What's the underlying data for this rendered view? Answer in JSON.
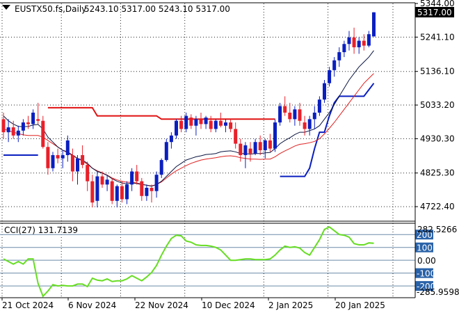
{
  "header": {
    "symbol": "EUSTX50.fs,Daily",
    "ohlc": "5243.10 5317.00 5243.10 5317.00"
  },
  "price_panel": {
    "current_price_tag": "5317.00",
    "top_label": "5344.00",
    "price_labels": [
      "5241.10",
      "5136.10",
      "5033.20",
      "4930.30",
      "4825.30",
      "4722.40"
    ]
  },
  "indicator_panel": {
    "title": "CCI(27) 131.7139",
    "max_label": "282.5266",
    "min_label": "-285.9598",
    "levels": [
      {
        "label": "200",
        "value": 200,
        "tagged": true
      },
      {
        "label": "100",
        "value": 100,
        "tagged": true
      },
      {
        "label": "0.00",
        "value": 0,
        "tagged": false
      },
      {
        "label": "-100",
        "value": -100,
        "tagged": true
      },
      {
        "label": "-200",
        "value": -200,
        "tagged": true
      }
    ]
  },
  "x_axis": {
    "labels": [
      "21 Oct 2024",
      "6 Nov 2024",
      "22 Nov 2024",
      "10 Dec 2024",
      "2 Jan 2025",
      "20 Jan 2025"
    ]
  },
  "colors": {
    "bull": "#0a1fbf",
    "bear": "#e8202a",
    "ema_fast": "#0a1440",
    "ema_slow": "#e02020",
    "support": "#0a1fbf",
    "resistance": "#e01010",
    "cci": "#66dd22",
    "level_line": "#6a8aa8",
    "tag_bg": "#2a62a8",
    "price_tag_bg": "#000000"
  },
  "chart_data": {
    "type": "candlestick",
    "y_range_price": [
      4680,
      5344
    ],
    "y_range_cci": [
      -285.9598,
      282.5266
    ],
    "candles": [
      [
        4990,
        5010,
        4930,
        4950
      ],
      [
        4950,
        4990,
        4920,
        4965
      ],
      [
        4965,
        4985,
        4930,
        4940
      ],
      [
        4940,
        4970,
        4920,
        4955
      ],
      [
        4955,
        4990,
        4940,
        4980
      ],
      [
        4980,
        5000,
        4960,
        4975
      ],
      [
        4975,
        5020,
        4960,
        5010
      ],
      [
        4990,
        5040,
        4975,
        4985
      ],
      [
        4985,
        5000,
        4900,
        4905
      ],
      [
        4905,
        4920,
        4820,
        4840
      ],
      [
        4840,
        4890,
        4830,
        4880
      ],
      [
        4880,
        4900,
        4855,
        4870
      ],
      [
        4870,
        4895,
        4840,
        4880
      ],
      [
        4880,
        4940,
        4860,
        4925
      ],
      [
        4880,
        4900,
        4800,
        4830
      ],
      [
        4830,
        4880,
        4790,
        4870
      ],
      [
        4880,
        4910,
        4840,
        4850
      ],
      [
        4850,
        4860,
        4770,
        4800
      ],
      [
        4800,
        4820,
        4720,
        4735
      ],
      [
        4740,
        4830,
        4720,
        4815
      ],
      [
        4815,
        4830,
        4780,
        4790
      ],
      [
        4790,
        4820,
        4770,
        4805
      ],
      [
        4800,
        4810,
        4730,
        4740
      ],
      [
        4740,
        4790,
        4720,
        4785
      ],
      [
        4785,
        4800,
        4735,
        4745
      ],
      [
        4745,
        4800,
        4730,
        4790
      ],
      [
        4790,
        4840,
        4770,
        4830
      ],
      [
        4830,
        4850,
        4790,
        4800
      ],
      [
        4800,
        4810,
        4740,
        4755
      ],
      [
        4755,
        4790,
        4740,
        4780
      ],
      [
        4780,
        4790,
        4735,
        4770
      ],
      [
        4770,
        4830,
        4750,
        4820
      ],
      [
        4820,
        4870,
        4810,
        4865
      ],
      [
        4865,
        4930,
        4860,
        4920
      ],
      [
        4920,
        4950,
        4900,
        4940
      ],
      [
        4940,
        4990,
        4930,
        4985
      ],
      [
        4985,
        5000,
        4950,
        4960
      ],
      [
        4960,
        5010,
        4950,
        5000
      ],
      [
        4995,
        5005,
        4960,
        4970
      ],
      [
        4970,
        5000,
        4940,
        4990
      ],
      [
        4990,
        5010,
        4960,
        4975
      ],
      [
        4975,
        5000,
        4960,
        4995
      ],
      [
        4985,
        5000,
        4950,
        4960
      ],
      [
        4960,
        4990,
        4950,
        4985
      ],
      [
        4985,
        5010,
        4965,
        4970
      ],
      [
        4970,
        4990,
        4950,
        4980
      ],
      [
        4980,
        4990,
        4950,
        4960
      ],
      [
        4960,
        4980,
        4900,
        4915
      ],
      [
        4915,
        4930,
        4860,
        4880
      ],
      [
        4880,
        4920,
        4840,
        4910
      ],
      [
        4900,
        4920,
        4860,
        4885
      ],
      [
        4885,
        4930,
        4880,
        4920
      ],
      [
        4920,
        4940,
        4880,
        4895
      ],
      [
        4895,
        4930,
        4870,
        4925
      ],
      [
        4925,
        4945,
        4890,
        4900
      ],
      [
        4900,
        4990,
        4890,
        4980
      ],
      [
        4980,
        5040,
        4970,
        5030
      ],
      [
        5030,
        5060,
        5000,
        5010
      ],
      [
        5010,
        5040,
        4980,
        4990
      ],
      [
        4990,
        5030,
        4970,
        5020
      ],
      [
        5020,
        5040,
        4970,
        4985
      ],
      [
        4980,
        5000,
        4940,
        4960
      ],
      [
        4960,
        5000,
        4940,
        4990
      ],
      [
        4990,
        5030,
        4960,
        5010
      ],
      [
        5010,
        5060,
        5000,
        5050
      ],
      [
        5050,
        5110,
        5040,
        5100
      ],
      [
        5100,
        5150,
        5090,
        5140
      ],
      [
        5140,
        5180,
        5120,
        5170
      ],
      [
        5170,
        5210,
        5150,
        5195
      ],
      [
        5195,
        5230,
        5180,
        5220
      ],
      [
        5220,
        5260,
        5200,
        5240
      ],
      [
        5240,
        5270,
        5190,
        5210
      ],
      [
        5210,
        5240,
        5190,
        5230
      ],
      [
        5230,
        5250,
        5200,
        5215
      ],
      [
        5215,
        5260,
        5210,
        5250
      ],
      [
        5243.1,
        5317,
        5243.1,
        5317
      ]
    ],
    "ema_fast": [
      5000,
      4985,
      4975,
      4968,
      4967,
      4968,
      4972,
      4974,
      4960,
      4935,
      4920,
      4905,
      4895,
      4890,
      4880,
      4870,
      4865,
      4855,
      4840,
      4830,
      4825,
      4818,
      4808,
      4800,
      4795,
      4792,
      4795,
      4793,
      4790,
      4788,
      4785,
      4790,
      4800,
      4815,
      4830,
      4845,
      4855,
      4865,
      4870,
      4875,
      4878,
      4882,
      4883,
      4885,
      4890,
      4892,
      4893,
      4890,
      4885,
      4885,
      4883,
      4885,
      4885,
      4887,
      4888,
      4900,
      4915,
      4925,
      4933,
      4943,
      4950,
      4950,
      4955,
      4960,
      4970,
      4990,
      5010,
      5035,
      5060,
      5085,
      5110,
      5130,
      5150,
      5165,
      5180,
      5200
    ],
    "ema_slow": [
      4960,
      4955,
      4950,
      4946,
      4942,
      4940,
      4940,
      4940,
      4935,
      4925,
      4915,
      4905,
      4895,
      4887,
      4878,
      4870,
      4862,
      4852,
      4840,
      4832,
      4826,
      4819,
      4810,
      4804,
      4800,
      4797,
      4797,
      4795,
      4791,
      4788,
      4786,
      4790,
      4798,
      4810,
      4822,
      4832,
      4840,
      4848,
      4855,
      4860,
      4865,
      4868,
      4870,
      4872,
      4875,
      4877,
      4878,
      4876,
      4872,
      4870,
      4868,
      4868,
      4867,
      4868,
      4868,
      4875,
      4885,
      4893,
      4900,
      4908,
      4913,
      4915,
      4918,
      4922,
      4930,
      4945,
      4962,
      4980,
      5000,
      5020,
      5040,
      5060,
      5080,
      5100,
      5115,
      5130
    ],
    "resistance": [
      null,
      null,
      null,
      null,
      null,
      null,
      null,
      null,
      null,
      5025,
      5025,
      5025,
      5025,
      5025,
      5025,
      5025,
      5025,
      5025,
      5025,
      5000,
      5000,
      5000,
      5000,
      5000,
      5000,
      5000,
      5000,
      5000,
      5000,
      5000,
      5000,
      5000,
      4990,
      4990,
      4990,
      4990,
      4990,
      4990,
      4990,
      4990,
      4990,
      4990,
      4990,
      4990,
      4990,
      4990,
      4990,
      4990,
      4990,
      4990,
      4990,
      4990,
      4990,
      4990,
      4990,
      4990,
      null,
      null,
      null,
      null,
      null,
      null,
      null,
      null,
      null,
      null,
      null,
      null,
      null,
      null,
      null,
      null,
      null,
      null,
      null,
      null
    ],
    "support": [
      4880,
      4880,
      4880,
      4880,
      4880,
      4880,
      4880,
      4880,
      null,
      null,
      null,
      null,
      null,
      null,
      null,
      null,
      null,
      null,
      null,
      null,
      null,
      null,
      null,
      null,
      null,
      null,
      null,
      null,
      null,
      null,
      null,
      null,
      null,
      null,
      null,
      null,
      null,
      null,
      null,
      null,
      null,
      null,
      null,
      null,
      null,
      null,
      null,
      null,
      null,
      null,
      null,
      null,
      null,
      null,
      null,
      null,
      4815,
      4815,
      4815,
      4815,
      4815,
      4815,
      4840,
      4900,
      4950,
      4950,
      5000,
      5040,
      5060,
      5060,
      5060,
      5060,
      5060,
      5060,
      5080,
      5100
    ],
    "cci": [
      10,
      -10,
      -30,
      -10,
      -30,
      10,
      10,
      -180,
      -280,
      -240,
      -190,
      -200,
      -195,
      -200,
      -200,
      -185,
      -185,
      -205,
      -140,
      -155,
      -160,
      -145,
      -165,
      -160,
      -160,
      -145,
      -120,
      -140,
      -160,
      -130,
      -95,
      -40,
      40,
      110,
      170,
      195,
      190,
      150,
      140,
      120,
      115,
      115,
      110,
      100,
      80,
      40,
      0,
      0,
      5,
      10,
      10,
      5,
      5,
      5,
      10,
      40,
      80,
      110,
      100,
      105,
      95,
      60,
      40,
      100,
      160,
      240,
      260,
      230,
      200,
      195,
      180,
      130,
      120,
      120,
      135,
      132
    ]
  }
}
